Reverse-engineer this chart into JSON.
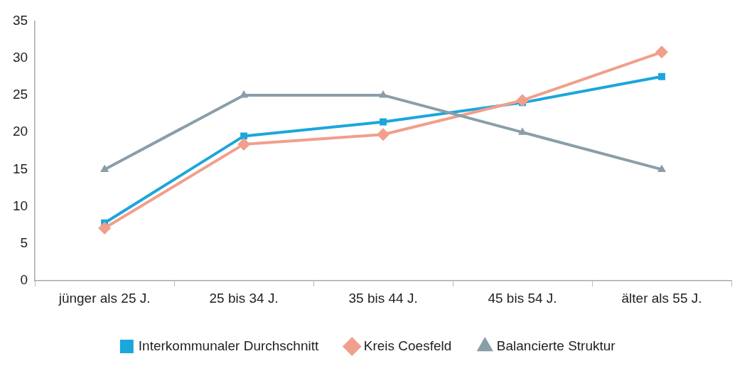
{
  "chart_data": {
    "type": "line",
    "categories": [
      "jünger als 25 J.",
      "25 bis 34 J.",
      "35 bis 44 J.",
      "45 bis 54 J.",
      "älter als 55 J."
    ],
    "series": [
      {
        "name": "Interkommunaler Durchschnitt",
        "color": "#1ba6dc",
        "marker": "square",
        "values": [
          7.8,
          19.5,
          21.4,
          24.0,
          27.5
        ]
      },
      {
        "name": "Kreis Coesfeld",
        "color": "#f19f8b",
        "marker": "diamond",
        "values": [
          7.1,
          18.4,
          19.7,
          24.3,
          30.8
        ]
      },
      {
        "name": "Balancierte Struktur",
        "color": "#8a9ea9",
        "marker": "triangle",
        "values": [
          15,
          25,
          25,
          20,
          15
        ]
      }
    ],
    "ylim": [
      0,
      35
    ],
    "yticks": [
      0,
      5,
      10,
      15,
      20,
      25,
      30,
      35
    ],
    "grid": false,
    "legend": "bottom",
    "line_style": "solid"
  }
}
